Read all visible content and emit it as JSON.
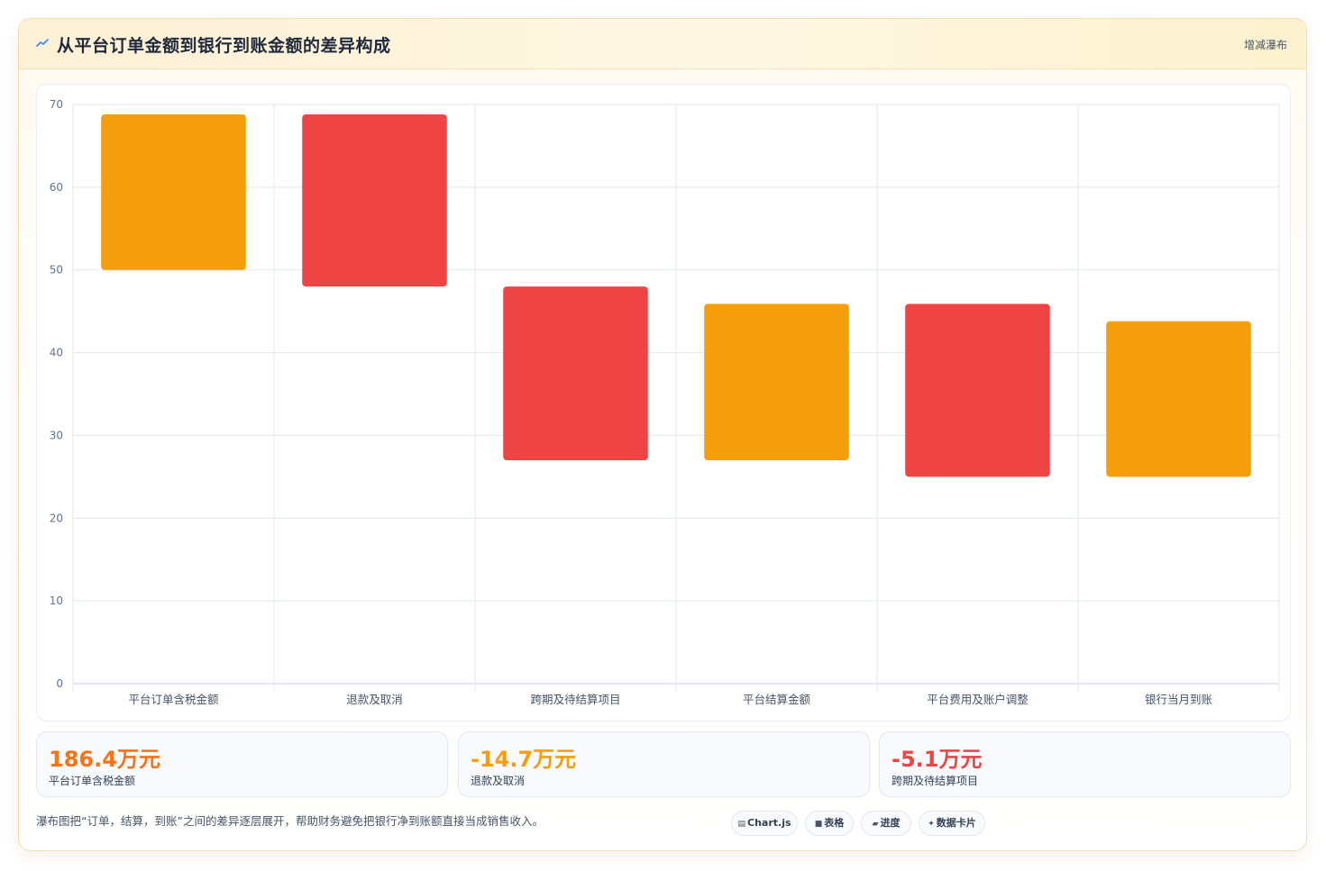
{
  "header": {
    "title": "从平台订单金额到银行到账金额的差异构成",
    "tag": "增减瀑布"
  },
  "colors": {
    "increase": "#f59e0b",
    "decrease": "#ef4444",
    "brand": "#f97316"
  },
  "chart_data": {
    "type": "bar",
    "subtype": "waterfall",
    "categories": [
      "平台订单含税金额",
      "退款及取消",
      "跨期及待结算项目",
      "平台结算金额",
      "平台费用及账户调整",
      "银行当月到账"
    ],
    "bars": [
      {
        "from": 50.0,
        "to": 68.8,
        "kind": "total"
      },
      {
        "from": 68.8,
        "to": 48.0,
        "kind": "decrease"
      },
      {
        "from": 48.0,
        "to": 27.0,
        "kind": "decrease"
      },
      {
        "from": 27.0,
        "to": 45.9,
        "kind": "total"
      },
      {
        "from": 45.9,
        "to": 25.0,
        "kind": "decrease"
      },
      {
        "from": 25.0,
        "to": 43.8,
        "kind": "total"
      }
    ],
    "ylim": [
      0,
      70
    ],
    "yticks": [
      0,
      10,
      20,
      30,
      40,
      50,
      60,
      70
    ],
    "grid": true,
    "legend": "none"
  },
  "stats": [
    {
      "value": "186.4万元",
      "label": "平台订单含税金额",
      "color": "#f97316"
    },
    {
      "value": "-14.7万元",
      "label": "退款及取消",
      "color": "#f59e0b"
    },
    {
      "value": "-5.1万元",
      "label": "跨期及待结算项目",
      "color": "#ef4444"
    }
  ],
  "footnote": "瀑布图把“订单，结算，到账”之间的差异逐层展开，帮助财务避免把银行净到账额直接当成销售收入。",
  "chips": [
    {
      "icon": "chart-icon",
      "glyph": "▤",
      "label": "Chart.js"
    },
    {
      "icon": "table-icon",
      "glyph": "■",
      "label": "表格"
    },
    {
      "icon": "progress-icon",
      "glyph": "▰",
      "label": "进度"
    },
    {
      "icon": "card-icon",
      "glyph": "✦",
      "label": "数据卡片"
    }
  ]
}
